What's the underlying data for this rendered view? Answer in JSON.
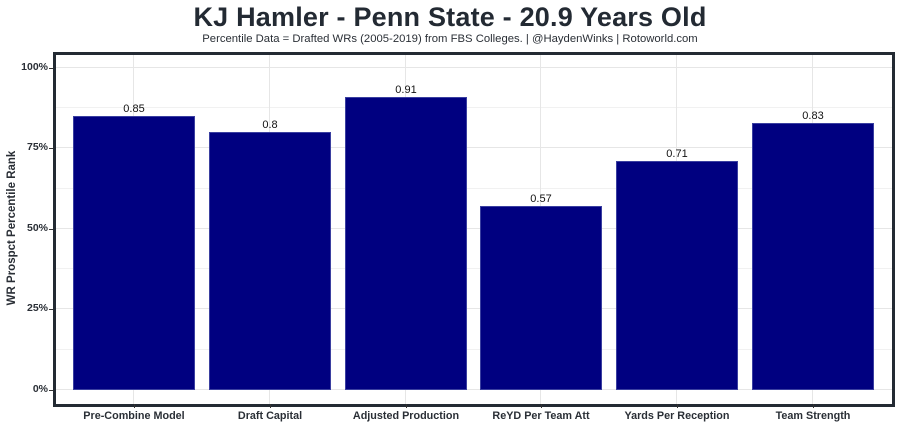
{
  "header": {
    "title": "KJ Hamler - Penn State - 20.9 Years Old",
    "subtitle": "Percentile Data = Drafted WRs (2005-2019) from FBS Colleges. | @HaydenWinks | Rotoworld.com"
  },
  "axes": {
    "ylabel": "WR Prospct Percentile Rank",
    "yticks": [
      "0%",
      "25%",
      "50%",
      "75%",
      "100%"
    ],
    "xticks": [
      "Pre-Combine Model",
      "Draft Capital",
      "Adjusted Production",
      "ReYD Per Team Att",
      "Yards Per Reception",
      "Team Strength"
    ]
  },
  "bars": [
    {
      "label": "Pre-Combine Model",
      "value": 0.85,
      "text": "0.85"
    },
    {
      "label": "Draft Capital",
      "value": 0.8,
      "text": "0.8"
    },
    {
      "label": "Adjusted Production",
      "value": 0.91,
      "text": "0.91"
    },
    {
      "label": "ReYD Per Team Att",
      "value": 0.57,
      "text": "0.57"
    },
    {
      "label": "Yards Per Reception",
      "value": 0.71,
      "text": "0.71"
    },
    {
      "label": "Team Strength",
      "value": 0.83,
      "text": "0.83"
    }
  ],
  "colors": {
    "bar": "#000080",
    "panel_border": "#232a33",
    "grid": "#e6e6e6"
  },
  "chart_data": {
    "type": "bar",
    "title": "KJ Hamler - Penn State - 20.9 Years Old",
    "subtitle": "Percentile Data = Drafted WRs (2005-2019) from FBS Colleges. | @HaydenWinks | Rotoworld.com",
    "categories": [
      "Pre-Combine Model",
      "Draft Capital",
      "Adjusted Production",
      "ReYD Per Team Att",
      "Yards Per Reception",
      "Team Strength"
    ],
    "values": [
      0.85,
      0.8,
      0.91,
      0.57,
      0.71,
      0.83
    ],
    "data_labels": [
      "0.85",
      "0.8",
      "0.91",
      "0.57",
      "0.71",
      "0.83"
    ],
    "xlabel": "",
    "ylabel": "WR Prospct Percentile Rank",
    "ylim": [
      0,
      1
    ],
    "yticks": [
      0,
      0.25,
      0.5,
      0.75,
      1.0
    ],
    "ytick_labels": [
      "0%",
      "25%",
      "50%",
      "75%",
      "100%"
    ],
    "grid": true,
    "legend": null,
    "bar_color": "#000080"
  }
}
